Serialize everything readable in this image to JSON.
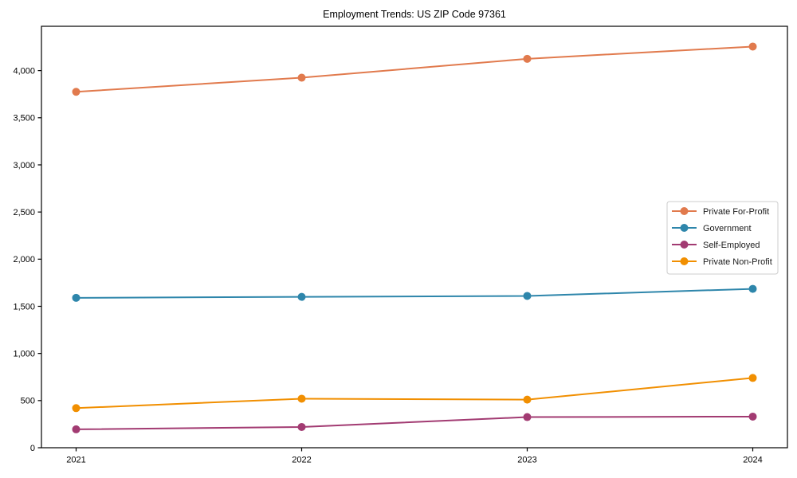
{
  "figure": {
    "title": "Employment Trends: US ZIP Code 97361"
  },
  "chart_data": {
    "type": "line",
    "title": "Employment Trends: US ZIP Code 97361",
    "x": [
      "2021",
      "2022",
      "2023",
      "2024"
    ],
    "series": [
      {
        "name": "Private For-Profit",
        "color": "#E17A4D",
        "values": [
          3775,
          3925,
          4125,
          4255
        ]
      },
      {
        "name": "Government",
        "color": "#2E86AB",
        "values": [
          1590,
          1600,
          1610,
          1685
        ]
      },
      {
        "name": "Self-Employed",
        "color": "#A23B72",
        "values": [
          195,
          220,
          325,
          330
        ]
      },
      {
        "name": "Private Non-Profit",
        "color": "#F18F01",
        "values": [
          420,
          520,
          510,
          740
        ]
      }
    ],
    "xlabel": "",
    "ylabel": "",
    "ylim": [
      0,
      4470
    ],
    "yticks": [
      0,
      500,
      1000,
      1500,
      2000,
      2500,
      3000,
      3500,
      4000
    ],
    "grid": false,
    "marker": "circle",
    "legend_position": "right",
    "axis_color": "#000000",
    "background_color": "#ffffff",
    "legend_border_color": "#cccccc"
  }
}
